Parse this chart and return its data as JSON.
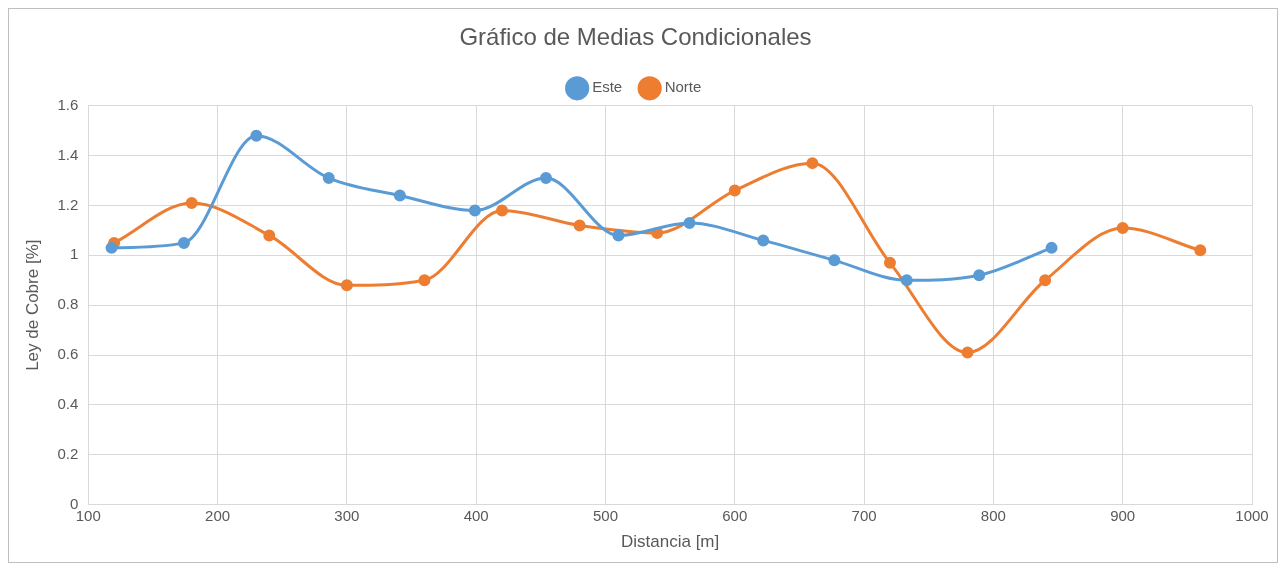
{
  "chart_data": {
    "type": "line",
    "title": "Gráfico de Medias Condicionales",
    "xlabel": "Distancia [m]",
    "ylabel": "Ley de Cobre [%]",
    "xlim": [
      100,
      1000
    ],
    "xticks": [
      100,
      200,
      300,
      400,
      500,
      600,
      700,
      800,
      900,
      1000
    ],
    "ylim": [
      0,
      1.6
    ],
    "yticks": [
      0,
      0.2,
      0.4,
      0.6,
      0.8,
      1,
      1.2,
      1.4,
      1.6
    ],
    "grid": true,
    "legend": "top",
    "marker": "circle",
    "line_style": "solid",
    "series": [
      {
        "name": "Este",
        "color": "#5b9bd5",
        "x": [
          118,
          174,
          230,
          286,
          341,
          399,
          454,
          510,
          565,
          622,
          677,
          733,
          789,
          845
        ],
        "values": [
          1.03,
          1.05,
          1.48,
          1.31,
          1.24,
          1.18,
          1.31,
          1.08,
          1.13,
          1.06,
          0.98,
          0.9,
          0.92,
          1.03
        ]
      },
      {
        "name": "Norte",
        "color": "#ed7d31",
        "x": [
          120,
          180,
          240,
          300,
          360,
          420,
          480,
          540,
          600,
          660,
          720,
          780,
          840,
          900,
          960
        ],
        "values": [
          1.05,
          1.21,
          1.08,
          0.88,
          0.9,
          1.18,
          1.12,
          1.09,
          1.26,
          1.37,
          0.97,
          0.61,
          0.9,
          1.11,
          1.02
        ]
      }
    ]
  }
}
